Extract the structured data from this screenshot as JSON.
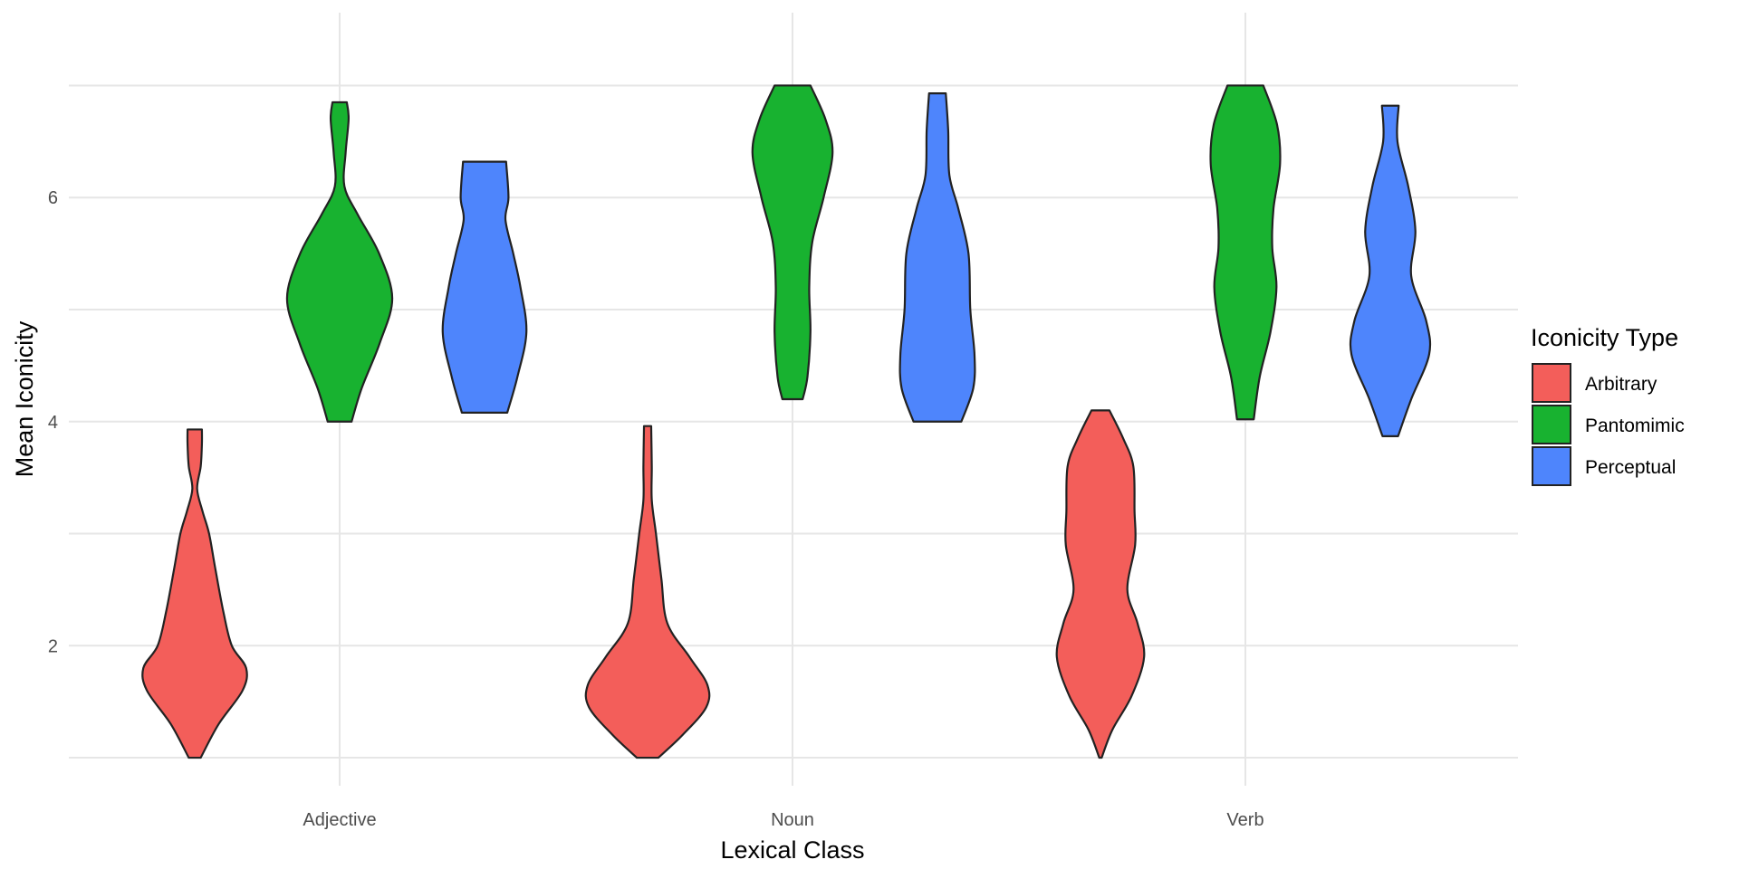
{
  "chart_data": {
    "type": "violin",
    "title": "",
    "xlabel": "Lexical Class",
    "ylabel": "Mean Iconicity",
    "categories": [
      "Adjective",
      "Noun",
      "Verb"
    ],
    "ylim": [
      0.75,
      7.65
    ],
    "yticks": [
      2,
      4,
      6
    ],
    "grid": true,
    "legend": {
      "title": "Iconicity Type",
      "placement": "right"
    },
    "series": [
      {
        "name": "Arbitrary",
        "color": "#F35E5A",
        "violins": [
          {
            "category": "Adjective",
            "min": 1.0,
            "max": 3.93,
            "profile": [
              [
                1.0,
                0.1
              ],
              [
                1.3,
                0.4
              ],
              [
                1.6,
                0.8
              ],
              [
                1.8,
                0.86
              ],
              [
                2.0,
                0.62
              ],
              [
                2.3,
                0.48
              ],
              [
                2.7,
                0.34
              ],
              [
                3.0,
                0.24
              ],
              [
                3.2,
                0.13
              ],
              [
                3.4,
                0.04
              ],
              [
                3.6,
                0.1
              ],
              [
                3.8,
                0.12
              ],
              [
                3.93,
                0.12
              ]
            ]
          },
          {
            "category": "Noun",
            "min": 1.0,
            "max": 3.96,
            "profile": [
              [
                1.0,
                0.18
              ],
              [
                1.2,
                0.58
              ],
              [
                1.45,
                0.98
              ],
              [
                1.65,
                1.0
              ],
              [
                1.9,
                0.7
              ],
              [
                2.2,
                0.33
              ],
              [
                2.6,
                0.23
              ],
              [
                3.0,
                0.14
              ],
              [
                3.3,
                0.07
              ],
              [
                3.6,
                0.07
              ],
              [
                3.96,
                0.06
              ]
            ]
          },
          {
            "category": "Verb",
            "min": 1.0,
            "max": 4.1,
            "profile": [
              [
                1.0,
                0.02
              ],
              [
                1.25,
                0.2
              ],
              [
                1.55,
                0.52
              ],
              [
                1.9,
                0.73
              ],
              [
                2.2,
                0.62
              ],
              [
                2.5,
                0.45
              ],
              [
                2.9,
                0.58
              ],
              [
                3.2,
                0.57
              ],
              [
                3.6,
                0.55
              ],
              [
                3.85,
                0.38
              ],
              [
                4.1,
                0.15
              ]
            ]
          }
        ]
      },
      {
        "name": "Pantomimic",
        "color": "#18B230",
        "violins": [
          {
            "category": "Adjective",
            "min": 4.0,
            "max": 6.85,
            "profile": [
              [
                4.0,
                0.2
              ],
              [
                4.3,
                0.37
              ],
              [
                4.7,
                0.67
              ],
              [
                5.1,
                0.88
              ],
              [
                5.5,
                0.66
              ],
              [
                5.85,
                0.3
              ],
              [
                6.1,
                0.08
              ],
              [
                6.4,
                0.1
              ],
              [
                6.7,
                0.15
              ],
              [
                6.85,
                0.12
              ]
            ]
          },
          {
            "category": "Noun",
            "min": 4.2,
            "max": 7.0,
            "profile": [
              [
                4.2,
                0.17
              ],
              [
                4.4,
                0.25
              ],
              [
                4.8,
                0.3
              ],
              [
                5.2,
                0.28
              ],
              [
                5.6,
                0.33
              ],
              [
                6.0,
                0.52
              ],
              [
                6.4,
                0.67
              ],
              [
                6.7,
                0.55
              ],
              [
                7.0,
                0.3
              ]
            ]
          },
          {
            "category": "Verb",
            "min": 4.02,
            "max": 7.0,
            "profile": [
              [
                4.02,
                0.14
              ],
              [
                4.4,
                0.24
              ],
              [
                4.8,
                0.42
              ],
              [
                5.2,
                0.52
              ],
              [
                5.55,
                0.45
              ],
              [
                5.9,
                0.47
              ],
              [
                6.3,
                0.58
              ],
              [
                6.65,
                0.53
              ],
              [
                7.0,
                0.3
              ]
            ]
          }
        ]
      },
      {
        "name": "Perceptual",
        "color": "#4E85FC",
        "violins": [
          {
            "category": "Adjective",
            "min": 4.08,
            "max": 6.32,
            "profile": [
              [
                4.08,
                0.38
              ],
              [
                4.4,
                0.55
              ],
              [
                4.8,
                0.7
              ],
              [
                5.2,
                0.6
              ],
              [
                5.5,
                0.48
              ],
              [
                5.8,
                0.35
              ],
              [
                6.0,
                0.4
              ],
              [
                6.32,
                0.36
              ]
            ]
          },
          {
            "category": "Noun",
            "min": 4.0,
            "max": 6.93,
            "profile": [
              [
                4.0,
                0.4
              ],
              [
                4.3,
                0.6
              ],
              [
                4.6,
                0.62
              ],
              [
                5.0,
                0.55
              ],
              [
                5.5,
                0.52
              ],
              [
                5.9,
                0.35
              ],
              [
                6.2,
                0.2
              ],
              [
                6.6,
                0.18
              ],
              [
                6.93,
                0.14
              ]
            ]
          },
          {
            "category": "Verb",
            "min": 3.87,
            "max": 6.82,
            "profile": [
              [
                3.87,
                0.13
              ],
              [
                4.2,
                0.35
              ],
              [
                4.6,
                0.65
              ],
              [
                4.9,
                0.6
              ],
              [
                5.3,
                0.35
              ],
              [
                5.7,
                0.42
              ],
              [
                6.1,
                0.3
              ],
              [
                6.5,
                0.12
              ],
              [
                6.82,
                0.14
              ]
            ]
          }
        ]
      }
    ]
  }
}
